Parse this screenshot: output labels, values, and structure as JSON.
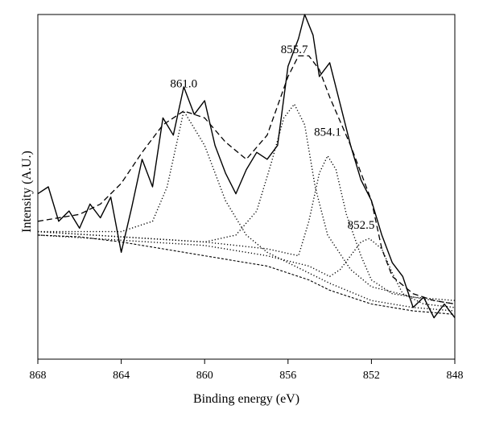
{
  "chart_data": {
    "type": "line",
    "xlabel": "Binding energy (eV)",
    "ylabel": "Intensity (A.U.)",
    "xlim": [
      868,
      848
    ],
    "x_reversed": true,
    "xticks": [
      868,
      864,
      860,
      856,
      852,
      848
    ],
    "ylim": [
      0,
      1
    ],
    "yticks_shown": false,
    "grid": false,
    "legend": "none",
    "peak_labels": [
      {
        "text": "861.0",
        "x": 861.0,
        "y": 0.8
      },
      {
        "text": "855.7",
        "x": 855.7,
        "y": 0.9
      },
      {
        "text": "854.1",
        "x": 854.1,
        "y": 0.66
      },
      {
        "text": "852.5",
        "x": 852.5,
        "y": 0.39
      }
    ],
    "series": [
      {
        "style": "solid",
        "points": [
          [
            868.0,
            0.48
          ],
          [
            867.5,
            0.5
          ],
          [
            867.0,
            0.4
          ],
          [
            866.5,
            0.43
          ],
          [
            866.0,
            0.38
          ],
          [
            865.5,
            0.45
          ],
          [
            865.0,
            0.41
          ],
          [
            864.5,
            0.47
          ],
          [
            864.0,
            0.31
          ],
          [
            863.5,
            0.44
          ],
          [
            863.0,
            0.58
          ],
          [
            862.5,
            0.5
          ],
          [
            862.0,
            0.7
          ],
          [
            861.5,
            0.65
          ],
          [
            861.0,
            0.79
          ],
          [
            860.5,
            0.71
          ],
          [
            860.0,
            0.75
          ],
          [
            859.5,
            0.62
          ],
          [
            859.0,
            0.54
          ],
          [
            858.5,
            0.48
          ],
          [
            858.0,
            0.55
          ],
          [
            857.5,
            0.6
          ],
          [
            857.0,
            0.58
          ],
          [
            856.5,
            0.62
          ],
          [
            856.0,
            0.85
          ],
          [
            855.5,
            0.93
          ],
          [
            855.2,
            1.0
          ],
          [
            854.8,
            0.94
          ],
          [
            854.5,
            0.82
          ],
          [
            854.0,
            0.86
          ],
          [
            853.5,
            0.74
          ],
          [
            853.0,
            0.62
          ],
          [
            852.5,
            0.52
          ],
          [
            852.0,
            0.46
          ],
          [
            851.5,
            0.36
          ],
          [
            851.0,
            0.28
          ],
          [
            850.5,
            0.24
          ],
          [
            850.0,
            0.15
          ],
          [
            849.5,
            0.18
          ],
          [
            849.0,
            0.12
          ],
          [
            848.5,
            0.16
          ],
          [
            848.0,
            0.12
          ]
        ]
      },
      {
        "style": "dashed",
        "points": [
          [
            868.0,
            0.4
          ],
          [
            867.0,
            0.41
          ],
          [
            866.0,
            0.42
          ],
          [
            865.0,
            0.45
          ],
          [
            864.0,
            0.51
          ],
          [
            863.0,
            0.6
          ],
          [
            862.0,
            0.68
          ],
          [
            861.0,
            0.72
          ],
          [
            860.0,
            0.7
          ],
          [
            859.0,
            0.63
          ],
          [
            858.0,
            0.58
          ],
          [
            857.0,
            0.65
          ],
          [
            856.0,
            0.82
          ],
          [
            855.5,
            0.88
          ],
          [
            855.0,
            0.88
          ],
          [
            854.5,
            0.84
          ],
          [
            854.0,
            0.76
          ],
          [
            853.0,
            0.62
          ],
          [
            852.0,
            0.46
          ],
          [
            851.5,
            0.32
          ],
          [
            851.0,
            0.24
          ],
          [
            850.0,
            0.19
          ],
          [
            849.0,
            0.17
          ],
          [
            848.0,
            0.16
          ]
        ]
      },
      {
        "style": "dashed-fine",
        "points": [
          [
            868.0,
            0.36
          ],
          [
            866.0,
            0.355
          ],
          [
            864.0,
            0.34
          ],
          [
            862.0,
            0.32
          ],
          [
            860.0,
            0.3
          ],
          [
            858.0,
            0.28
          ],
          [
            857.0,
            0.27
          ],
          [
            856.0,
            0.25
          ],
          [
            855.0,
            0.23
          ],
          [
            854.0,
            0.2
          ],
          [
            853.0,
            0.18
          ],
          [
            852.0,
            0.16
          ],
          [
            851.0,
            0.15
          ],
          [
            850.0,
            0.14
          ],
          [
            849.0,
            0.135
          ],
          [
            848.0,
            0.13
          ]
        ]
      },
      {
        "style": "dotted",
        "points": [
          [
            868.0,
            0.37
          ],
          [
            866.0,
            0.37
          ],
          [
            864.0,
            0.37
          ],
          [
            862.5,
            0.4
          ],
          [
            861.8,
            0.5
          ],
          [
            861.0,
            0.72
          ],
          [
            860.0,
            0.62
          ],
          [
            859.0,
            0.46
          ],
          [
            858.0,
            0.36
          ],
          [
            857.0,
            0.31
          ],
          [
            856.0,
            0.28
          ],
          [
            854.0,
            0.22
          ],
          [
            852.0,
            0.17
          ],
          [
            850.0,
            0.15
          ],
          [
            848.0,
            0.14
          ]
        ]
      },
      {
        "style": "dotted",
        "points": [
          [
            868.0,
            0.37
          ],
          [
            864.0,
            0.355
          ],
          [
            860.0,
            0.34
          ],
          [
            858.5,
            0.36
          ],
          [
            857.5,
            0.43
          ],
          [
            856.8,
            0.57
          ],
          [
            856.2,
            0.7
          ],
          [
            855.7,
            0.74
          ],
          [
            855.2,
            0.68
          ],
          [
            854.7,
            0.5
          ],
          [
            854.1,
            0.36
          ],
          [
            853.0,
            0.26
          ],
          [
            852.0,
            0.21
          ],
          [
            850.0,
            0.18
          ],
          [
            848.0,
            0.17
          ]
        ]
      },
      {
        "style": "dotted",
        "points": [
          [
            868.0,
            0.37
          ],
          [
            864.0,
            0.355
          ],
          [
            860.0,
            0.34
          ],
          [
            857.0,
            0.32
          ],
          [
            855.5,
            0.3
          ],
          [
            855.0,
            0.4
          ],
          [
            854.5,
            0.54
          ],
          [
            854.1,
            0.59
          ],
          [
            853.7,
            0.55
          ],
          [
            853.2,
            0.42
          ],
          [
            852.5,
            0.3
          ],
          [
            852.0,
            0.23
          ],
          [
            851.0,
            0.19
          ],
          [
            849.0,
            0.17
          ],
          [
            848.0,
            0.16
          ]
        ]
      },
      {
        "style": "dotted",
        "points": [
          [
            868.0,
            0.36
          ],
          [
            864.0,
            0.345
          ],
          [
            860.0,
            0.33
          ],
          [
            857.0,
            0.3
          ],
          [
            855.0,
            0.27
          ],
          [
            854.0,
            0.24
          ],
          [
            853.5,
            0.26
          ],
          [
            853.0,
            0.3
          ],
          [
            852.5,
            0.34
          ],
          [
            852.1,
            0.35
          ],
          [
            851.5,
            0.32
          ],
          [
            851.0,
            0.25
          ],
          [
            850.5,
            0.19
          ],
          [
            849.5,
            0.16
          ],
          [
            848.0,
            0.15
          ]
        ]
      }
    ]
  }
}
